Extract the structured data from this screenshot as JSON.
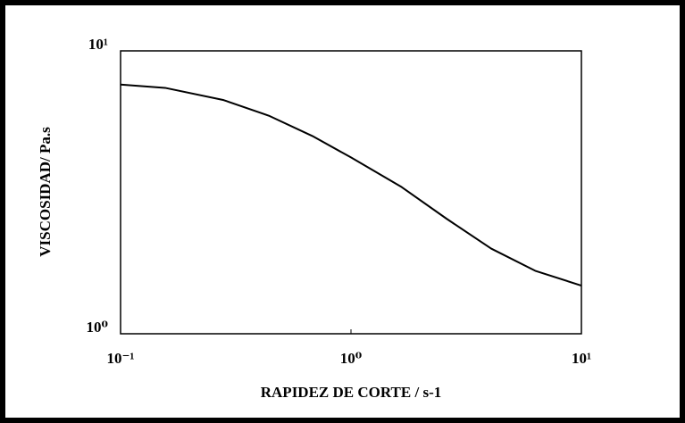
{
  "chart_data": {
    "type": "line",
    "xlabel": "RAPIDEZ DE CORTE / s-1",
    "ylabel": "VISCOSIDAD/ Pa.s",
    "xscale": "log",
    "yscale": "log",
    "xlim": [
      0.1,
      10
    ],
    "ylim": [
      1,
      10
    ],
    "xticks": [
      {
        "value": 0.1,
        "label": "10⁻¹"
      },
      {
        "value": 1,
        "label": "10⁰"
      },
      {
        "value": 10,
        "label": "10¹"
      }
    ],
    "yticks": [
      {
        "value": 1,
        "label": "10⁰"
      },
      {
        "value": 10,
        "label": "10¹"
      }
    ],
    "grid": false,
    "series": [
      {
        "color": "#000000",
        "x": [
          0.1,
          0.156,
          0.28,
          0.44,
          0.68,
          1,
          1.66,
          2.6,
          4.06,
          6.3,
          10
        ],
        "values": [
          7.6,
          7.4,
          6.7,
          5.9,
          5.0,
          4.2,
          3.3,
          2.55,
          2.0,
          1.67,
          1.48
        ]
      }
    ]
  }
}
